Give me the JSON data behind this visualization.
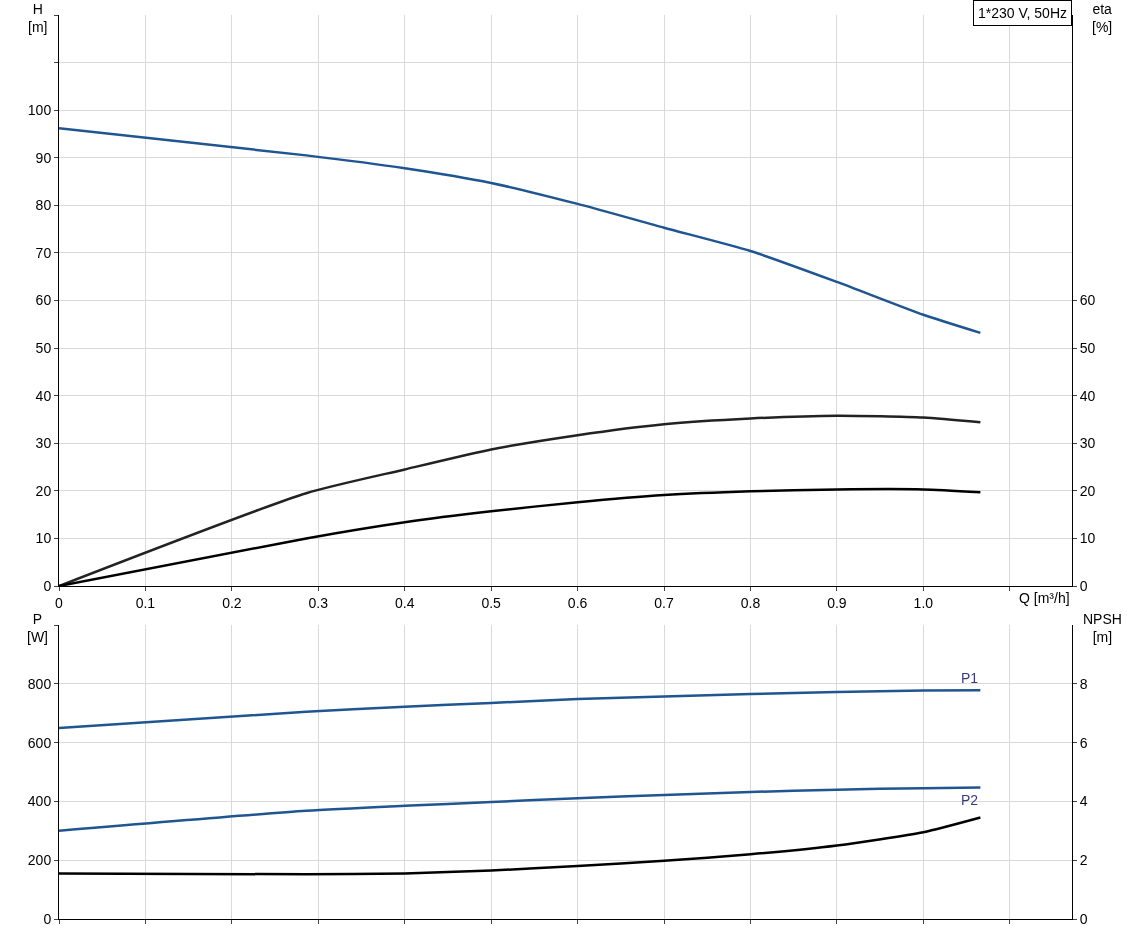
{
  "chart_data": [
    {
      "type": "line",
      "xlabel": "Q [m³/h]",
      "ylabel": "H [m]",
      "y2label": "eta [%]",
      "annotations": [
        "1*230 V, 50Hz"
      ],
      "grid": true,
      "line_style": "solid",
      "marker": "none",
      "x": [
        0,
        0.286,
        0.4,
        0.5,
        0.6,
        0.7,
        0.8,
        0.9,
        1.0,
        1.066
      ],
      "xlim": [
        0,
        1.172
      ],
      "xticks": [
        0,
        0.1,
        0.2,
        0.3,
        0.4,
        0.5,
        0.6,
        0.7,
        0.8,
        0.9,
        {
          "value": 1.0,
          "label": "1.0"
        },
        {
          "value": 1.1,
          "label": null
        }
      ],
      "ylim": [
        0,
        120
      ],
      "yticks": [
        0,
        10,
        20,
        30,
        40,
        50,
        60,
        70,
        80,
        90,
        100,
        {
          "value": 110,
          "label": null
        },
        {
          "value": 120,
          "label": null
        }
      ],
      "y2lim": [
        0,
        120
      ],
      "y2ticks": [
        0,
        10,
        20,
        30,
        40,
        50,
        60
      ],
      "series": [
        {
          "color": "#1f5591",
          "values": [
            96.2,
            90.5,
            87.8,
            84.7,
            80.3,
            75.3,
            70.4,
            63.9,
            57,
            53.2
          ]
        },
        {
          "color": "#222222",
          "axis": "y2",
          "values": [
            0,
            19.5,
            24.5,
            28.7,
            31.7,
            34,
            35.2,
            35.8,
            35.4,
            34.4
          ]
        },
        {
          "color": "#000000",
          "axis": "y2",
          "values": [
            0,
            10,
            13.4,
            15.7,
            17.6,
            19.1,
            19.9,
            20.3,
            20.3,
            19.7
          ]
        }
      ]
    },
    {
      "type": "line",
      "ylabel": "P [W]",
      "y2label": "NPSH [m]",
      "grid": true,
      "tick_labels": "y",
      "line_style": "solid",
      "marker": "none",
      "x": [
        0,
        0.286,
        0.4,
        0.5,
        0.6,
        0.7,
        0.8,
        0.9,
        1.0,
        1.066
      ],
      "xlim": [
        0,
        1.172
      ],
      "xticks": [
        0,
        0.1,
        0.2,
        0.3,
        0.4,
        0.5,
        0.6,
        0.7,
        0.8,
        0.9,
        1.0,
        1.1
      ],
      "ylim": [
        0,
        1000
      ],
      "yticks": [
        0,
        200,
        400,
        600,
        800,
        {
          "value": 1000,
          "label": null
        }
      ],
      "y2lim": [
        0,
        10
      ],
      "y2ticks": [
        0,
        2,
        4,
        6,
        8
      ],
      "series": [
        {
          "name": "P1",
          "color": "#1f5591",
          "values": [
            650,
            705,
            722,
            735,
            748,
            757,
            765,
            772,
            777,
            778
          ]
        },
        {
          "name": "P2",
          "color": "#1f5591",
          "values": [
            300,
            368,
            385,
            398,
            411,
            422,
            432,
            440,
            445,
            447
          ]
        },
        {
          "color": "#000000",
          "axis": "y2",
          "values": [
            1.55,
            1.52,
            1.55,
            1.65,
            1.8,
            1.98,
            2.2,
            2.5,
            2.95,
            3.45
          ]
        }
      ]
    }
  ]
}
